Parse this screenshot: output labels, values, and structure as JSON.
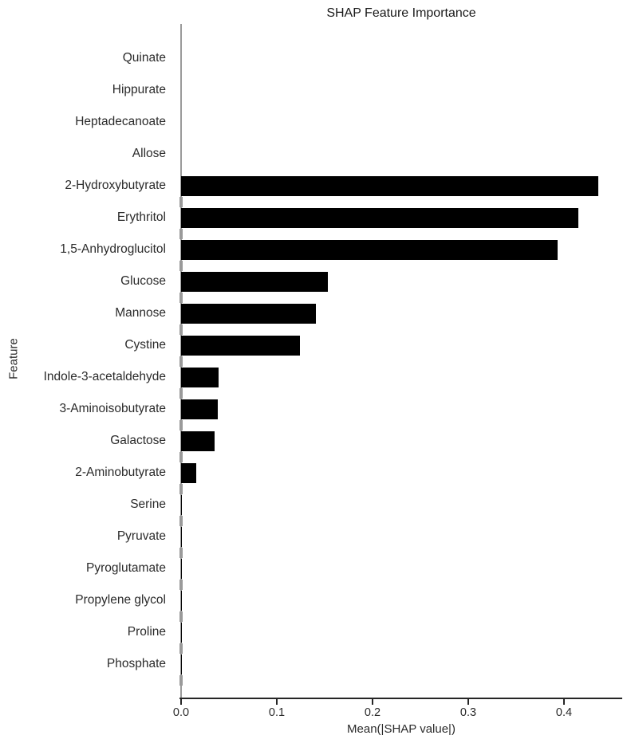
{
  "chart_data": {
    "type": "bar",
    "orientation": "horizontal",
    "title": "SHAP Feature Importance",
    "xlabel": "Mean(|SHAP value|)",
    "ylabel": "Feature",
    "xlim": [
      0,
      0.46
    ],
    "xticks": [
      0.0,
      0.1,
      0.2,
      0.3,
      0.4
    ],
    "xtick_labels": [
      "0.0",
      "0.1",
      "0.2",
      "0.3",
      "0.4"
    ],
    "grid": false,
    "legend": null,
    "bar_color": "#000000",
    "categories": [
      "Quinate",
      "Hippurate",
      "Heptadecanoate",
      "Allose",
      "2-Hydroxybutyrate",
      "Erythritol",
      "1,5-Anhydroglucitol",
      "Glucose",
      "Mannose",
      "Cystine",
      "Indole-3-acetaldehyde",
      "3-Aminoisobutyrate",
      "Galactose",
      "2-Aminobutyrate",
      "Serine",
      "Pyruvate",
      "Pyroglutamate",
      "Propylene glycol",
      "Proline",
      "Phosphate"
    ],
    "values": [
      0.0,
      0.0,
      0.0,
      0.0,
      0.436,
      0.415,
      0.393,
      0.153,
      0.141,
      0.124,
      0.039,
      0.038,
      0.035,
      0.016,
      0.001,
      0.001,
      0.001,
      0.001,
      0.001,
      0.001
    ]
  },
  "colors": {
    "bar": "#000000",
    "left_spine": "#9a9a9a",
    "axis": "#262626",
    "text": "#2b2b2b"
  }
}
